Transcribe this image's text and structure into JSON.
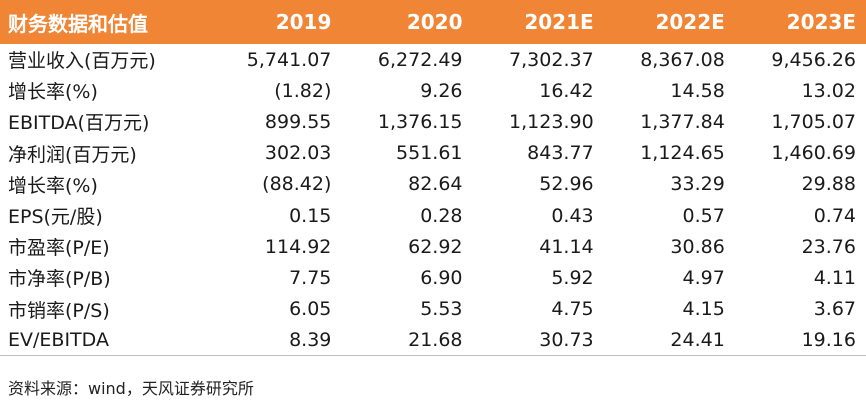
{
  "table": {
    "header": [
      "财务数据和估值",
      "2019",
      "2020",
      "2021E",
      "2022E",
      "2023E"
    ],
    "rows": [
      {
        "label": "营业收入(百万元)",
        "values": [
          "5,741.07",
          "6,272.49",
          "7,302.37",
          "8,367.08",
          "9,456.26"
        ]
      },
      {
        "label": "增长率(%)",
        "values": [
          "(1.82)",
          "9.26",
          "16.42",
          "14.58",
          "13.02"
        ]
      },
      {
        "label": "EBITDA(百万元)",
        "values": [
          "899.55",
          "1,376.15",
          "1,123.90",
          "1,377.84",
          "1,705.07"
        ]
      },
      {
        "label": "净利润(百万元)",
        "values": [
          "302.03",
          "551.61",
          "843.77",
          "1,124.65",
          "1,460.69"
        ]
      },
      {
        "label": "增长率(%)",
        "values": [
          "(88.42)",
          "82.64",
          "52.96",
          "33.29",
          "29.88"
        ]
      },
      {
        "label": "EPS(元/股)",
        "values": [
          "0.15",
          "0.28",
          "0.43",
          "0.57",
          "0.74"
        ]
      },
      {
        "label": "市盈率(P/E)",
        "values": [
          "114.92",
          "62.92",
          "41.14",
          "30.86",
          "23.76"
        ]
      },
      {
        "label": "市净率(P/B)",
        "values": [
          "7.75",
          "6.90",
          "5.92",
          "4.97",
          "4.11"
        ]
      },
      {
        "label": "市销率(P/S)",
        "values": [
          "6.05",
          "5.53",
          "4.75",
          "4.15",
          "3.67"
        ]
      },
      {
        "label": "EV/EBITDA",
        "values": [
          "8.39",
          "21.68",
          "30.73",
          "24.41",
          "19.16"
        ]
      }
    ]
  },
  "source_note": "资料来源：wind，天风证券研究所",
  "colors": {
    "header_bg": "#f08536",
    "header_text": "#ffffff",
    "body_text": "#1a1a1a"
  }
}
